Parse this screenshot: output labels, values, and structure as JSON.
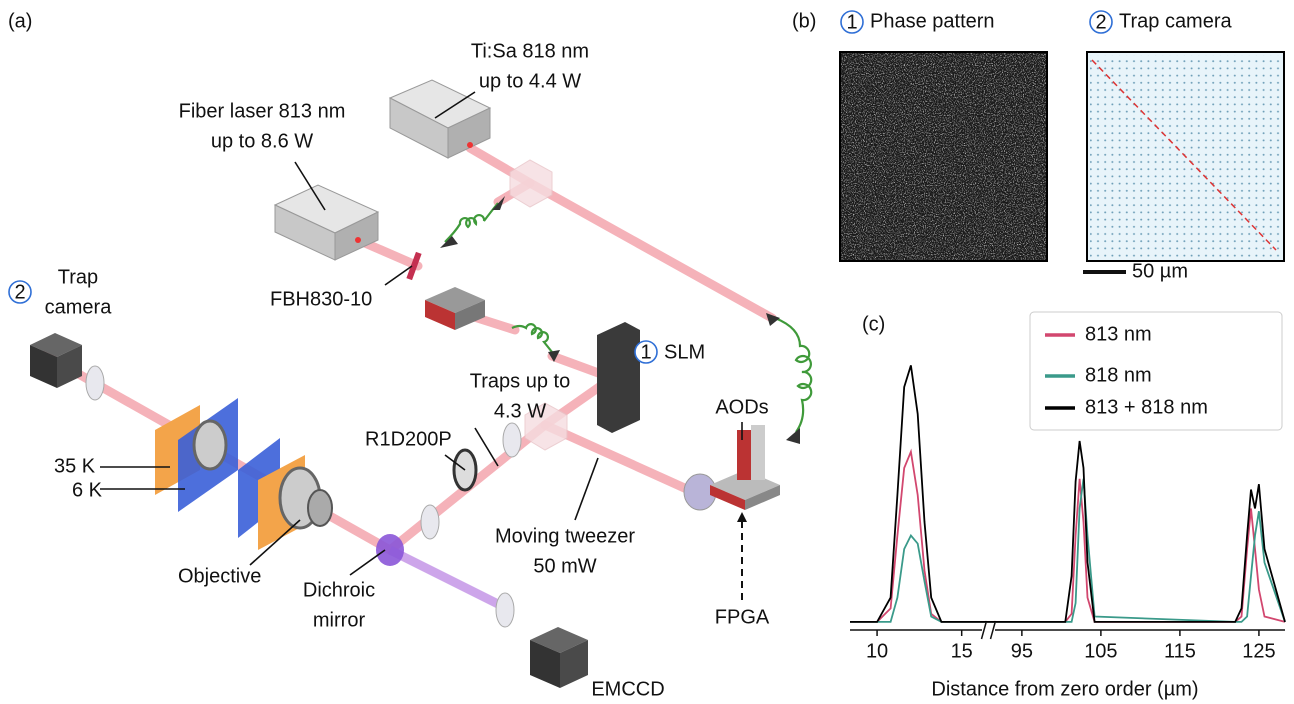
{
  "panel_a": {
    "label": "(a)",
    "tisa": [
      "Ti:Sa 818 nm",
      "up to 4.4 W"
    ],
    "fiber_laser": [
      "Fiber laser 813 nm",
      "up to 8.6 W"
    ],
    "filter": "FBH830-10",
    "trap_camera": {
      "number": "2",
      "text": [
        "Trap",
        "camera"
      ]
    },
    "slm": {
      "number": "1",
      "text": "SLM"
    },
    "traps": [
      "Traps up to",
      "4.3 W"
    ],
    "r1d": "R1D200P",
    "aods": "AODs",
    "k35": "35 K",
    "k6": "6 K",
    "objective": "Objective",
    "dichroic": [
      "Dichroic",
      "mirror"
    ],
    "moving": [
      "Moving tweezer",
      "50 mW"
    ],
    "fpga": "FPGA",
    "emccd": "EMCCD"
  },
  "panel_b": {
    "label": "(b)",
    "phase": {
      "number": "1",
      "text": "Phase pattern"
    },
    "camera": {
      "number": "2",
      "text": "Trap camera"
    },
    "scale": "50 µm"
  },
  "chart_data": {
    "type": "line",
    "panel_label": "(c)",
    "x_label": "Distance from zero order (µm)",
    "x_segments": [
      {
        "xlim": [
          8.4,
          16.2
        ],
        "xticks": [
          10,
          15
        ]
      },
      {
        "xlim": [
          91.6,
          128.3
        ],
        "xticks": [
          95,
          105,
          115,
          125
        ]
      }
    ],
    "ylim": [
      0,
      1
    ],
    "x": [
      8.4,
      10,
      10.8,
      11.2,
      11.6,
      12.0,
      12.4,
      12.8,
      13.2,
      13.8,
      16.2,
      91.6,
      100.5,
      101.3,
      101.8,
      102.3,
      102.8,
      103.3,
      104.2,
      122,
      122.8,
      123.5,
      124,
      124.5,
      125,
      125.7,
      128.3
    ],
    "series": [
      {
        "name": "813 nm",
        "color": "#d2476f",
        "values": [
          0.03,
          0.03,
          0.08,
          0.35,
          0.6,
          0.66,
          0.5,
          0.22,
          0.06,
          0.03,
          0.03,
          0.03,
          0.03,
          0.06,
          0.35,
          0.56,
          0.4,
          0.12,
          0.03,
          0.03,
          0.05,
          0.3,
          0.45,
          0.3,
          0.15,
          0.05,
          0.03
        ]
      },
      {
        "name": "818 nm",
        "color": "#3a9a8a",
        "values": [
          0.03,
          0.03,
          0.03,
          0.12,
          0.3,
          0.35,
          0.32,
          0.18,
          0.05,
          0.03,
          0.03,
          0.03,
          0.03,
          0.03,
          0.1,
          0.45,
          0.56,
          0.35,
          0.05,
          0.03,
          0.03,
          0.05,
          0.2,
          0.35,
          0.44,
          0.25,
          0.03
        ]
      },
      {
        "name": "813 + 818 nm",
        "color": "#000000",
        "values": [
          0.03,
          0.03,
          0.12,
          0.5,
          0.9,
          0.98,
          0.8,
          0.4,
          0.12,
          0.03,
          0.03,
          0.03,
          0.03,
          0.2,
          0.55,
          0.7,
          0.6,
          0.25,
          0.03,
          0.03,
          0.08,
          0.35,
          0.52,
          0.45,
          0.54,
          0.3,
          0.03
        ]
      }
    ]
  }
}
